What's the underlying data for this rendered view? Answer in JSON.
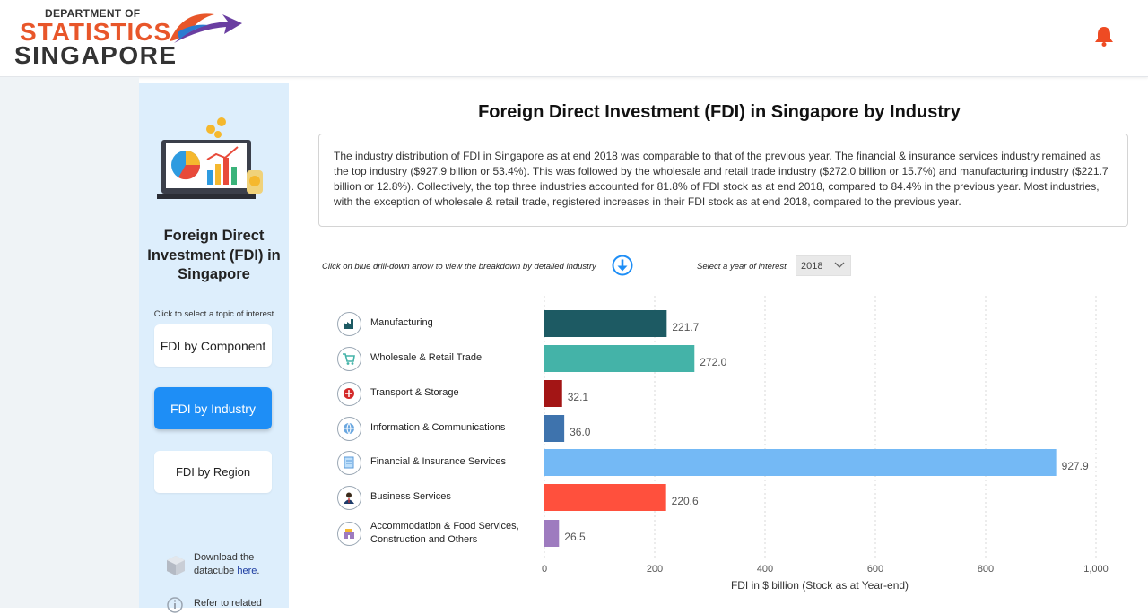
{
  "header": {
    "logo_line1": "DEPARTMENT OF",
    "logo_line2": "STATISTICS",
    "logo_line3": "SINGAPORE",
    "bell_icon": "bell-icon"
  },
  "sidebar": {
    "title": "Foreign Direct Investment (FDI) in Singapore",
    "hint": "Click to select a topic of interest",
    "buttons": [
      "FDI by Component",
      "FDI by Industry",
      "FDI by Region"
    ],
    "active_index": 1,
    "download_prefix": "Download the datacube",
    "download_link": "here",
    "download_suffix": ".",
    "refer_text": "Refer to related"
  },
  "main": {
    "title": "Foreign Direct Investment (FDI) in Singapore by Industry",
    "description": "The industry distribution of FDI in Singapore as at end 2018 was comparable to that of the previous year. The financial & insurance services industry remained as the top industry ($927.9 billion or 53.4%). This was followed by the wholesale and retail trade industry ($272.0 billion or 15.7%) and manufacturing industry ($221.7 billion or 12.8%). Collectively, the top three industries accounted for 81.8% of FDI stock as at end 2018, compared to 84.4% in the previous year. Most industries, with the exception of wholesale & retail trade, registered increases in their FDI stock as at end 2018, compared to the previous year.",
    "drill_hint": "Click on blue drill-down arrow to view the breakdown by detailed industry",
    "year_label": "Select a year of interest",
    "year_value": "2018"
  },
  "chart_data": {
    "type": "bar",
    "orientation": "horizontal",
    "categories": [
      "Manufacturing",
      "Wholesale & Retail Trade",
      "Transport & Storage",
      "Information & Communications",
      "Financial & Insurance Services",
      "Business Services",
      "Accommodation & Food Services, Construction and Others"
    ],
    "values": [
      221.7,
      272.0,
      32.1,
      36.0,
      927.9,
      220.6,
      26.5
    ],
    "value_labels": [
      "221.7",
      "272.0",
      "32.1",
      "36.0",
      "927.9",
      "220.6",
      "26.5"
    ],
    "colors": [
      "#1d5a63",
      "#44b3a8",
      "#a31515",
      "#3e73ad",
      "#74b9f5",
      "#ff503d",
      "#9e7bbf"
    ],
    "icons": [
      "factory-icon",
      "shopping-cart-icon",
      "transport-icon",
      "globe-icon",
      "finance-document-icon",
      "business-person-icon",
      "hotel-icon"
    ],
    "xlabel": "FDI in $ billion (Stock as at Year-end)",
    "xlim": [
      0,
      1000
    ],
    "xticks": [
      "0",
      "200",
      "400",
      "600",
      "800",
      "1,000"
    ],
    "grid": true
  }
}
